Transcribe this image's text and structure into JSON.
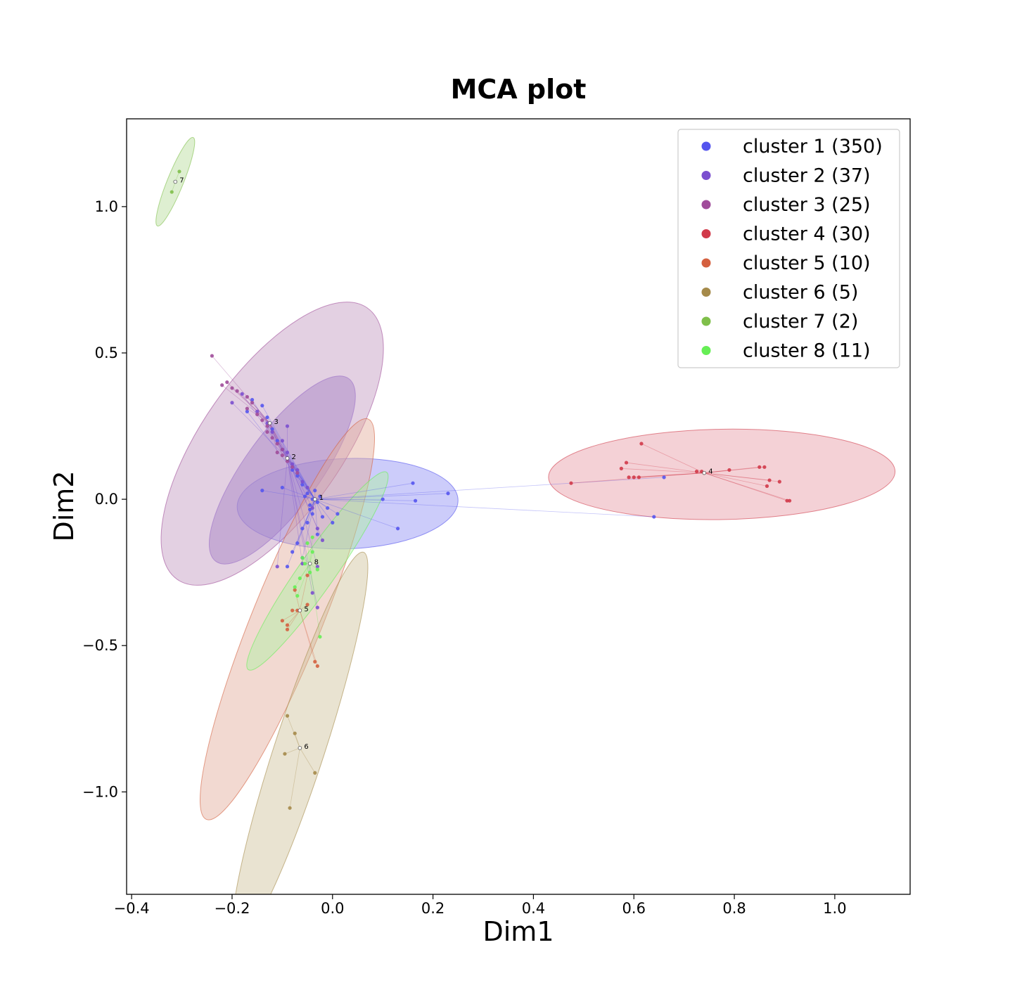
{
  "chart_data": {
    "type": "scatter",
    "title": "MCA plot",
    "xlabel": "Dim1",
    "ylabel": "Dim2",
    "xlim": [
      -0.41,
      1.15
    ],
    "ylim": [
      -1.35,
      1.3
    ],
    "xticks": [
      -0.4,
      -0.2,
      0.0,
      0.2,
      0.4,
      0.6,
      0.8,
      1.0
    ],
    "xtick_labels": [
      "−0.4",
      "−0.2",
      "0.0",
      "0.2",
      "0.4",
      "0.6",
      "0.8",
      "1.0"
    ],
    "yticks": [
      1.0,
      0.5,
      0.0,
      -0.5,
      -1.0
    ],
    "ytick_labels": [
      "1.0",
      "0.5",
      "0.0",
      "−0.5",
      "−1.0"
    ],
    "grid": false,
    "legend_position": "top-right",
    "series": [
      {
        "name": "cluster 1 (350)",
        "label": "1",
        "color": "#5555ee",
        "fill": "#8f8ff5",
        "centroid": [
          -0.035,
          0.0
        ],
        "ellipse": {
          "center": [
            0.03,
            -0.015
          ],
          "half_axes": [
            0.22,
            0.09
          ],
          "angle_deg": -2
        },
        "points": [
          [
            -0.05,
            0.02
          ],
          [
            -0.04,
            0.0
          ],
          [
            -0.03,
            -0.01
          ],
          [
            -0.045,
            -0.02
          ],
          [
            -0.06,
            0.05
          ],
          [
            -0.07,
            0.08
          ],
          [
            -0.08,
            0.1
          ],
          [
            -0.09,
            0.14
          ],
          [
            -0.1,
            0.17
          ],
          [
            -0.11,
            0.2
          ],
          [
            -0.12,
            0.24
          ],
          [
            -0.13,
            0.28
          ],
          [
            -0.14,
            0.32
          ],
          [
            -0.16,
            0.34
          ],
          [
            -0.17,
            0.3
          ],
          [
            -0.04,
            -0.05
          ],
          [
            -0.05,
            -0.08
          ],
          [
            -0.06,
            -0.1
          ],
          [
            -0.03,
            -0.12
          ],
          [
            -0.02,
            -0.06
          ],
          [
            -0.01,
            -0.03
          ],
          [
            0.0,
            -0.08
          ],
          [
            0.01,
            -0.05
          ],
          [
            -0.07,
            -0.15
          ],
          [
            -0.08,
            -0.18
          ],
          [
            -0.09,
            -0.23
          ],
          [
            -0.06,
            -0.2
          ],
          [
            -0.14,
            0.03
          ],
          [
            -0.1,
            0.04
          ],
          [
            0.1,
            0.0
          ],
          [
            0.16,
            0.055
          ],
          [
            0.165,
            -0.005
          ],
          [
            0.13,
            -0.1
          ],
          [
            0.23,
            0.02
          ],
          [
            0.64,
            -0.06
          ],
          [
            0.66,
            0.075
          ],
          [
            -0.035,
            0.03
          ],
          [
            -0.025,
            0.01
          ],
          [
            -0.055,
            0.01
          ],
          [
            -0.045,
            -0.035
          ]
        ]
      },
      {
        "name": "cluster 2 (37)",
        "label": "2",
        "color": "#7b4fcf",
        "fill": "#8a6ac8",
        "centroid": [
          -0.09,
          0.14
        ],
        "ellipse": {
          "center": [
            -0.1,
            0.1
          ],
          "half_axes": [
            0.225,
            0.075
          ],
          "angle_deg": -54
        },
        "points": [
          [
            -0.2,
            0.33
          ],
          [
            -0.18,
            0.36
          ],
          [
            -0.15,
            0.3
          ],
          [
            -0.13,
            0.26
          ],
          [
            -0.1,
            0.2
          ],
          [
            -0.09,
            0.16
          ],
          [
            -0.08,
            0.12
          ],
          [
            -0.07,
            0.1
          ],
          [
            -0.06,
            0.06
          ],
          [
            -0.05,
            0.04
          ],
          [
            -0.04,
            -0.03
          ],
          [
            -0.03,
            -0.1
          ],
          [
            -0.02,
            -0.14
          ],
          [
            -0.03,
            -0.23
          ],
          [
            -0.04,
            -0.32
          ],
          [
            -0.03,
            -0.37
          ],
          [
            -0.06,
            -0.22
          ],
          [
            -0.11,
            -0.23
          ],
          [
            -0.12,
            0.23
          ],
          [
            -0.09,
            0.25
          ]
        ]
      },
      {
        "name": "cluster 3 (25)",
        "label": "3",
        "color": "#a04c9a",
        "fill": "#c296be",
        "centroid": [
          -0.125,
          0.26
        ],
        "ellipse": {
          "center": [
            -0.12,
            0.19
          ],
          "half_axes": [
            0.33,
            0.14
          ],
          "angle_deg": -55
        },
        "points": [
          [
            -0.24,
            0.49
          ],
          [
            -0.22,
            0.39
          ],
          [
            -0.21,
            0.4
          ],
          [
            -0.19,
            0.37
          ],
          [
            -0.17,
            0.35
          ],
          [
            -0.15,
            0.29
          ],
          [
            -0.14,
            0.27
          ],
          [
            -0.13,
            0.25
          ],
          [
            -0.12,
            0.21
          ],
          [
            -0.11,
            0.19
          ],
          [
            -0.1,
            0.17
          ],
          [
            -0.1,
            0.15
          ],
          [
            -0.09,
            0.13
          ],
          [
            -0.08,
            0.11
          ],
          [
            -0.07,
            0.09
          ],
          [
            -0.17,
            0.31
          ],
          [
            -0.13,
            0.23
          ],
          [
            -0.11,
            0.16
          ],
          [
            -0.2,
            0.38
          ],
          [
            -0.16,
            0.33
          ]
        ]
      },
      {
        "name": "cluster 4 (30)",
        "label": "4",
        "color": "#d13a4a",
        "fill": "#e69aa4",
        "centroid": [
          0.74,
          0.09
        ],
        "ellipse": {
          "center": [
            0.775,
            0.085
          ],
          "half_axes": [
            0.345,
            0.09
          ],
          "angle_deg": -1
        },
        "points": [
          [
            0.475,
            0.055
          ],
          [
            0.575,
            0.105
          ],
          [
            0.585,
            0.125
          ],
          [
            0.59,
            0.075
          ],
          [
            0.6,
            0.075
          ],
          [
            0.61,
            0.075
          ],
          [
            0.615,
            0.19
          ],
          [
            0.725,
            0.095
          ],
          [
            0.735,
            0.095
          ],
          [
            0.74,
            0.09
          ],
          [
            0.79,
            0.1
          ],
          [
            0.85,
            0.11
          ],
          [
            0.86,
            0.11
          ],
          [
            0.865,
            0.045
          ],
          [
            0.87,
            0.065
          ],
          [
            0.89,
            0.06
          ],
          [
            0.905,
            -0.005
          ],
          [
            0.91,
            -0.005
          ]
        ]
      },
      {
        "name": "cluster 5 (10)",
        "label": "5",
        "color": "#d4603f",
        "fill": "#e2aa9a",
        "centroid": [
          -0.065,
          -0.38
        ],
        "ellipse": {
          "center": [
            -0.09,
            -0.41
          ],
          "half_axes": [
            0.43,
            0.07
          ],
          "angle_deg": -68
        },
        "points": [
          [
            -0.1,
            -0.415
          ],
          [
            -0.09,
            -0.43
          ],
          [
            -0.09,
            -0.445
          ],
          [
            -0.08,
            -0.38
          ],
          [
            -0.075,
            -0.31
          ],
          [
            -0.07,
            -0.38
          ],
          [
            -0.05,
            -0.36
          ],
          [
            -0.035,
            -0.555
          ],
          [
            -0.03,
            -0.57
          ],
          [
            -0.05,
            -0.26
          ]
        ]
      },
      {
        "name": "cluster 6 (5)",
        "label": "6",
        "color": "#a58a4a",
        "fill": "#cfc09a",
        "centroid": [
          -0.065,
          -0.85
        ],
        "ellipse": {
          "center": [
            -0.065,
            -0.85
          ],
          "half_axes": [
            0.41,
            0.05
          ],
          "angle_deg": -72
        },
        "points": [
          [
            -0.09,
            -0.74
          ],
          [
            -0.075,
            -0.8
          ],
          [
            -0.095,
            -0.87
          ],
          [
            -0.085,
            -1.055
          ],
          [
            -0.035,
            -0.935
          ]
        ]
      },
      {
        "name": "cluster 7 (2)",
        "label": "7",
        "color": "#7fbf4a",
        "fill": "#b5dc9a",
        "centroid": [
          -0.313,
          1.085
        ],
        "ellipse": {
          "center": [
            -0.313,
            1.085
          ],
          "half_axes": [
            0.095,
            0.016
          ],
          "angle_deg": -68
        },
        "points": [
          [
            -0.32,
            1.05
          ],
          [
            -0.305,
            1.12
          ]
        ]
      },
      {
        "name": "cluster 8 (11)",
        "label": "8",
        "color": "#66ee55",
        "fill": "#aef2a2",
        "centroid": [
          -0.045,
          -0.22
        ],
        "ellipse": {
          "center": [
            -0.03,
            -0.245
          ],
          "half_axes": [
            0.24,
            0.036
          ],
          "angle_deg": -55
        },
        "points": [
          [
            -0.075,
            -0.3
          ],
          [
            -0.07,
            -0.33
          ],
          [
            -0.06,
            -0.2
          ],
          [
            -0.05,
            -0.15
          ],
          [
            -0.04,
            -0.18
          ],
          [
            -0.03,
            -0.24
          ],
          [
            -0.025,
            -0.47
          ],
          [
            -0.045,
            -0.25
          ],
          [
            -0.055,
            -0.22
          ],
          [
            -0.04,
            -0.13
          ],
          [
            -0.065,
            -0.27
          ]
        ]
      }
    ]
  }
}
